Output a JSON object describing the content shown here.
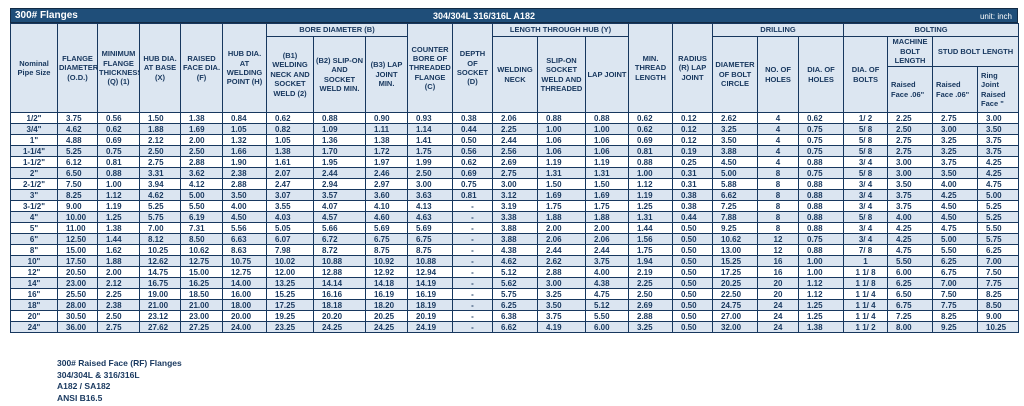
{
  "title_bar": {
    "left": "300# Flanges",
    "center": "304/304L 316/316L A182",
    "right": "unit: inch"
  },
  "columns": {
    "nominal": "Nominal Pipe Size",
    "od": "FLANGE DIAMETER (O.D.)",
    "thickness": "MINIMUM FLANGE THICKNESS (Q) (1)",
    "hub_base": "HUB DIA. AT BASE (X)",
    "raised_face": "RAISED FACE DIA. (F)",
    "hub_weld": "HUB DIA. AT WELDING POINT (H)",
    "bore_group": "BORE DIAMETER (B)",
    "b1": "(B1) WELDING NECK AND SOCKET WELD (2)",
    "b2": "(B2) SLIP-ON AND SOCKET WELD MIN.",
    "b3": "(B3) LAP JOINT MIN.",
    "counter_bore": "COUNTER BORE OF THREADED FLANGE (C)",
    "depth_socket": "DEPTH OF SOCKET (D)",
    "length_group": "LENGTH THROUGH HUB (Y)",
    "welding_neck": "WELDING NECK",
    "slip_on": "SLIP-ON SOCKET WELD AND THREADED",
    "lap_joint": "LAP JOINT",
    "min_thread": "MIN. THREAD LENGTH",
    "radius": "RADIUS (R) LAP JOINT",
    "drilling_group": "DRILLING",
    "bolt_circle": "DIAMETER OF BOLT CIRCLE",
    "no_holes": "NO. OF HOLES",
    "dia_holes": "DIA. OF HOLES",
    "bolting_group": "BOLTING",
    "dia_bolts": "DIA. OF BOLTS",
    "machine_bolt": "MACHINE BOLT LENGTH",
    "stud_bolt": "STUD BOLT LENGTH",
    "machine_rf": "Raised Face .06\"",
    "stud_rf": "Raised Face .06\"",
    "stud_rj": "Ring Joint Raised Face \""
  },
  "table": {
    "rows": [
      [
        "1/2\"",
        "3.75",
        "0.56",
        "1.50",
        "1.38",
        "0.84",
        "0.62",
        "0.88",
        "0.90",
        "0.93",
        "0.38",
        "2.06",
        "0.88",
        "0.88",
        "0.62",
        "0.12",
        "2.62",
        "4",
        "0.62",
        "1/ 2",
        "2.25",
        "2.75",
        "3.00"
      ],
      [
        "3/4\"",
        "4.62",
        "0.62",
        "1.88",
        "1.69",
        "1.05",
        "0.82",
        "1.09",
        "1.11",
        "1.14",
        "0.44",
        "2.25",
        "1.00",
        "1.00",
        "0.62",
        "0.12",
        "3.25",
        "4",
        "0.75",
        "5/ 8",
        "2.50",
        "3.00",
        "3.50"
      ],
      [
        "1\"",
        "4.88",
        "0.69",
        "2.12",
        "2.00",
        "1.32",
        "1.05",
        "1.36",
        "1.38",
        "1.41",
        "0.50",
        "2.44",
        "1.06",
        "1.06",
        "0.69",
        "0.12",
        "3.50",
        "4",
        "0.75",
        "5/ 8",
        "2.75",
        "3.25",
        "3.75"
      ],
      [
        "1-1/4\"",
        "5.25",
        "0.75",
        "2.50",
        "2.50",
        "1.66",
        "1.38",
        "1.70",
        "1.72",
        "1.75",
        "0.56",
        "2.56",
        "1.06",
        "1.06",
        "0.81",
        "0.19",
        "3.88",
        "4",
        "0.75",
        "5/ 8",
        "2.75",
        "3.25",
        "3.75"
      ],
      [
        "1-1/2\"",
        "6.12",
        "0.81",
        "2.75",
        "2.88",
        "1.90",
        "1.61",
        "1.95",
        "1.97",
        "1.99",
        "0.62",
        "2.69",
        "1.19",
        "1.19",
        "0.88",
        "0.25",
        "4.50",
        "4",
        "0.88",
        "3/ 4",
        "3.00",
        "3.75",
        "4.25"
      ],
      [
        "2\"",
        "6.50",
        "0.88",
        "3.31",
        "3.62",
        "2.38",
        "2.07",
        "2.44",
        "2.46",
        "2.50",
        "0.69",
        "2.75",
        "1.31",
        "1.31",
        "1.00",
        "0.31",
        "5.00",
        "8",
        "0.75",
        "5/ 8",
        "3.00",
        "3.50",
        "4.25"
      ],
      [
        "2-1/2\"",
        "7.50",
        "1.00",
        "3.94",
        "4.12",
        "2.88",
        "2.47",
        "2.94",
        "2.97",
        "3.00",
        "0.75",
        "3.00",
        "1.50",
        "1.50",
        "1.12",
        "0.31",
        "5.88",
        "8",
        "0.88",
        "3/ 4",
        "3.50",
        "4.00",
        "4.75"
      ],
      [
        "3\"",
        "8.25",
        "1.12",
        "4.62",
        "5.00",
        "3.50",
        "3.07",
        "3.57",
        "3.60",
        "3.63",
        "0.81",
        "3.12",
        "1.69",
        "1.69",
        "1.19",
        "0.38",
        "6.62",
        "8",
        "0.88",
        "3/ 4",
        "3.75",
        "4.25",
        "5.00"
      ],
      [
        "3-1/2\"",
        "9.00",
        "1.19",
        "5.25",
        "5.50",
        "4.00",
        "3.55",
        "4.07",
        "4.10",
        "4.13",
        "-",
        "3.19",
        "1.75",
        "1.75",
        "1.25",
        "0.38",
        "7.25",
        "8",
        "0.88",
        "3/ 4",
        "3.75",
        "4.50",
        "5.25"
      ],
      [
        "4\"",
        "10.00",
        "1.25",
        "5.75",
        "6.19",
        "4.50",
        "4.03",
        "4.57",
        "4.60",
        "4.63",
        "-",
        "3.38",
        "1.88",
        "1.88",
        "1.31",
        "0.44",
        "7.88",
        "8",
        "0.88",
        "5/ 8",
        "4.00",
        "4.50",
        "5.25"
      ],
      [
        "5\"",
        "11.00",
        "1.38",
        "7.00",
        "7.31",
        "5.56",
        "5.05",
        "5.66",
        "5.69",
        "5.69",
        "-",
        "3.88",
        "2.00",
        "2.00",
        "1.44",
        "0.50",
        "9.25",
        "8",
        "0.88",
        "3/ 4",
        "4.25",
        "4.75",
        "5.50"
      ],
      [
        "6\"",
        "12.50",
        "1.44",
        "8.12",
        "8.50",
        "6.63",
        "6.07",
        "6.72",
        "6.75",
        "6.75",
        "-",
        "3.88",
        "2.06",
        "2.06",
        "1.56",
        "0.50",
        "10.62",
        "12",
        "0.75",
        "3/ 4",
        "4.25",
        "5.00",
        "5.75"
      ],
      [
        "8\"",
        "15.00",
        "1.62",
        "10.25",
        "10.62",
        "8.63",
        "7.98",
        "8.72",
        "8.75",
        "8.75",
        "-",
        "4.38",
        "2.44",
        "2.44",
        "1.75",
        "0.50",
        "13.00",
        "12",
        "0.88",
        "7/ 8",
        "4.75",
        "5.50",
        "6.25"
      ],
      [
        "10\"",
        "17.50",
        "1.88",
        "12.62",
        "12.75",
        "10.75",
        "10.02",
        "10.88",
        "10.92",
        "10.88",
        "-",
        "4.62",
        "2.62",
        "3.75",
        "1.94",
        "0.50",
        "15.25",
        "16",
        "1.00",
        "1",
        "5.50",
        "6.25",
        "7.00"
      ],
      [
        "12\"",
        "20.50",
        "2.00",
        "14.75",
        "15.00",
        "12.75",
        "12.00",
        "12.88",
        "12.92",
        "12.94",
        "-",
        "5.12",
        "2.88",
        "4.00",
        "2.19",
        "0.50",
        "17.25",
        "16",
        "1.00",
        "1 1/ 8",
        "6.00",
        "6.75",
        "7.50"
      ],
      [
        "14\"",
        "23.00",
        "2.12",
        "16.75",
        "16.25",
        "14.00",
        "13.25",
        "14.14",
        "14.18",
        "14.19",
        "-",
        "5.62",
        "3.00",
        "4.38",
        "2.25",
        "0.50",
        "20.25",
        "20",
        "1.12",
        "1 1/ 8",
        "6.25",
        "7.00",
        "7.75"
      ],
      [
        "16\"",
        "25.50",
        "2.25",
        "19.00",
        "18.50",
        "16.00",
        "15.25",
        "16.16",
        "16.19",
        "16.19",
        "-",
        "5.75",
        "3.25",
        "4.75",
        "2.50",
        "0.50",
        "22.50",
        "20",
        "1.12",
        "1 1/ 4",
        "6.50",
        "7.50",
        "8.25"
      ],
      [
        "18\"",
        "28.00",
        "2.38",
        "21.00",
        "21.00",
        "18.00",
        "17.25",
        "18.18",
        "18.20",
        "18.19",
        "-",
        "6.25",
        "3.50",
        "5.12",
        "2.69",
        "0.50",
        "24.75",
        "24",
        "1.25",
        "1 1/ 4",
        "6.75",
        "7.75",
        "8.50"
      ],
      [
        "20\"",
        "30.50",
        "2.50",
        "23.12",
        "23.00",
        "20.00",
        "19.25",
        "20.20",
        "20.25",
        "20.19",
        "-",
        "6.38",
        "3.75",
        "5.50",
        "2.88",
        "0.50",
        "27.00",
        "24",
        "1.25",
        "1 1/ 4",
        "7.25",
        "8.25",
        "9.00"
      ],
      [
        "24\"",
        "36.00",
        "2.75",
        "27.62",
        "27.25",
        "24.00",
        "23.25",
        "24.25",
        "24.25",
        "24.19",
        "-",
        "6.62",
        "4.19",
        "6.00",
        "3.25",
        "0.50",
        "32.00",
        "24",
        "1.38",
        "1 1/ 2",
        "8.00",
        "9.25",
        "10.25"
      ]
    ]
  },
  "footer": {
    "lines": [
      "300# Raised Face (RF) Flanges",
      "304/304L & 316/316L",
      "A182 / SA182",
      "ANSI B16.5"
    ]
  },
  "colors": {
    "title_bar_bg": "#1F4E79",
    "header_bg": "#DCE6F1",
    "row_alt_bg": "#DBE5F1",
    "border": "#17375E",
    "text": "#17375E"
  }
}
